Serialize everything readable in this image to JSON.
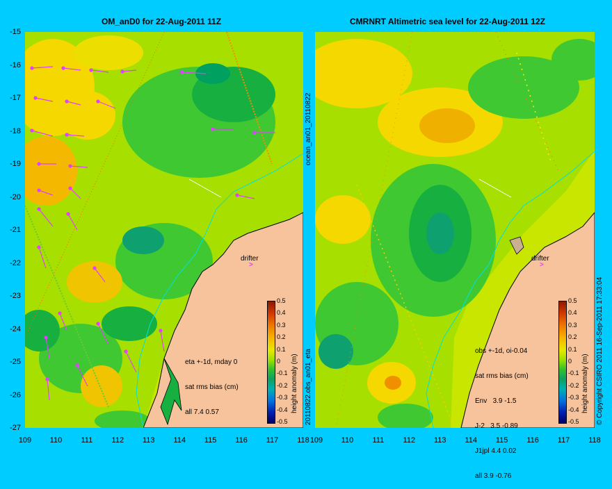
{
  "left_panel": {
    "title": "OM_anD0 for 22-Aug-2011 11Z",
    "drifter_label": "drifter",
    "stats": [
      "eta +-1d, mday 0",
      "sat rms bias (cm)",
      "all 7.4 0.57"
    ],
    "side_label": "20110822.obs_an01_eta"
  },
  "right_panel": {
    "title": "CMRNRT Altimetric sea level  for 22-Aug-2011 12Z",
    "drifter_label": "drifter",
    "stats": [
      "obs +-1d, oi-0.04",
      "sat rms bias (cm)",
      "Env   3.9 -1.5",
      "J-2   3.5 -0.89",
      "J1jpl 4.4 0.02",
      "all 3.9 -0.76"
    ],
    "side_label": "ocean_an01_20110822"
  },
  "colorbar": {
    "label": "height anomaly (m)",
    "ticks": [
      "0.5",
      "0.4",
      "0.3",
      "0.2",
      "0.1",
      "0",
      "-0.1",
      "-0.2",
      "-0.3",
      "-0.4",
      "-0.5"
    ]
  },
  "axes": {
    "y_ticks": [
      "-15",
      "-16",
      "-17",
      "-18",
      "-19",
      "-20",
      "-21",
      "-22",
      "-23",
      "-24",
      "-25",
      "-26",
      "-27"
    ],
    "x_ticks": [
      "109",
      "110",
      "111",
      "112",
      "113",
      "114",
      "115",
      "116",
      "117",
      "118"
    ]
  },
  "copyright": "© Copyright CSIRO 2011  16-Sep-2011 17:33:04",
  "colors": {
    "background": "#00ccff",
    "land": "#f6c39c",
    "vector": "#e040ff"
  }
}
